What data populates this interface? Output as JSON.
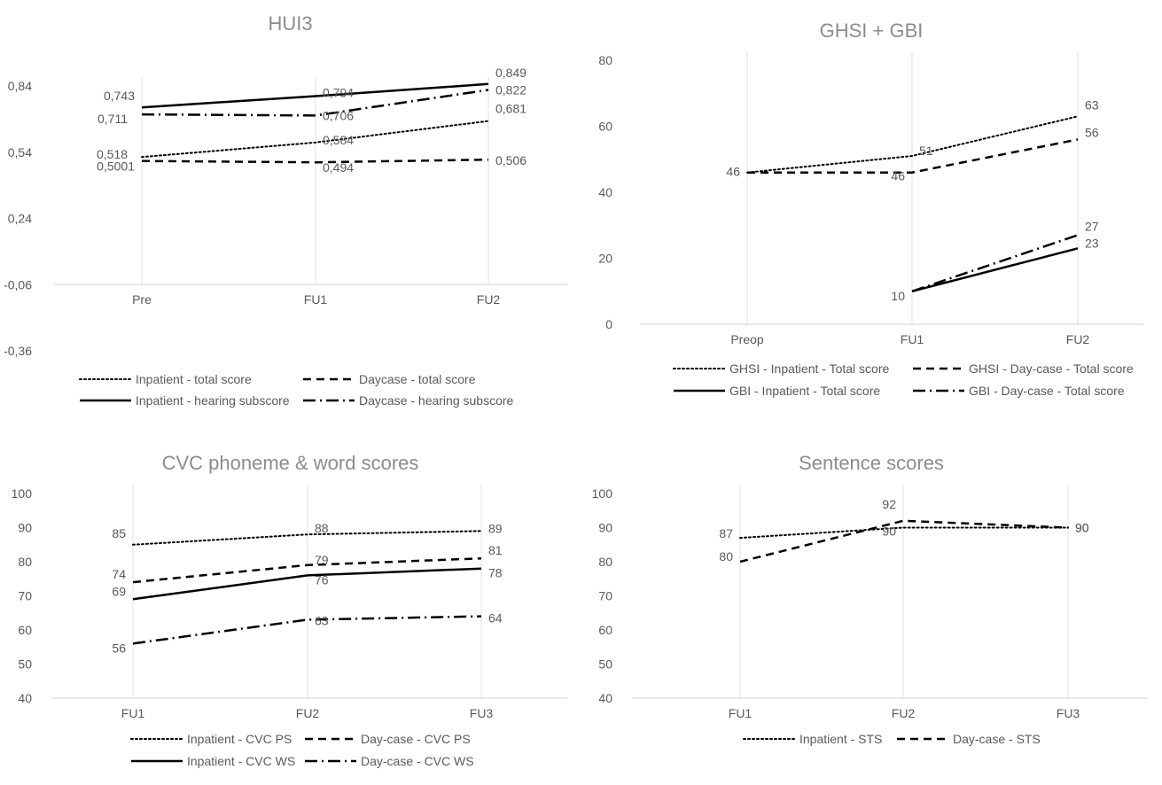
{
  "chart_data": [
    {
      "type": "line",
      "title": "HUI3",
      "categories": [
        "Pre",
        "FU1",
        "FU2"
      ],
      "ylim": [
        -0.36,
        0.84
      ],
      "y_ticks": [
        "0,84",
        "0,54",
        "0,24",
        "-0,06",
        "-0,36"
      ],
      "grid": false,
      "legend_position": "bottom",
      "series": [
        {
          "name": "Inpatient - total score",
          "style": "dotted",
          "values": [
            0.518,
            0.584,
            0.681
          ],
          "labels": [
            "0,518",
            "0,584",
            "0,681"
          ]
        },
        {
          "name": "Daycase - total score",
          "style": "dashed",
          "values": [
            0.5001,
            0.494,
            0.506
          ],
          "labels": [
            "0,5001",
            "0,494",
            "0,506"
          ]
        },
        {
          "name": "Inpatient - hearing subscore",
          "style": "solid",
          "values": [
            0.743,
            0.794,
            0.849
          ],
          "labels": [
            "0,743",
            "0,794",
            "0,849"
          ]
        },
        {
          "name": "Daycase - hearing subscore",
          "style": "dashdot",
          "values": [
            0.711,
            0.706,
            0.822
          ],
          "labels": [
            "0,711",
            "0,706",
            "0,822"
          ]
        }
      ]
    },
    {
      "type": "line",
      "title": "GHSI + GBI",
      "categories": [
        "Preop",
        "FU1",
        "FU2"
      ],
      "ylim": [
        0,
        80
      ],
      "y_ticks": [
        "80",
        "60",
        "40",
        "20",
        "0"
      ],
      "grid": false,
      "legend_position": "bottom",
      "series": [
        {
          "name": "GHSI - Inpatient - Total score",
          "style": "dotted",
          "values": [
            46,
            51,
            63
          ],
          "labels": [
            "",
            "51",
            "63"
          ]
        },
        {
          "name": "GHSI - Day-case - Total score",
          "style": "dashed",
          "values": [
            46,
            46,
            56
          ],
          "labels": [
            "46",
            "46",
            "56"
          ]
        },
        {
          "name": "GBI - Inpatient - Total score",
          "style": "solid",
          "values": [
            null,
            10,
            23
          ],
          "labels": [
            "",
            "10",
            "23"
          ]
        },
        {
          "name": "GBI - Day-case - Total score",
          "style": "dashdot",
          "values": [
            null,
            10,
            27
          ],
          "labels": [
            "",
            "",
            "27"
          ]
        }
      ]
    },
    {
      "type": "line",
      "title": "CVC phoneme & word scores",
      "categories": [
        "FU1",
        "FU2",
        "FU3"
      ],
      "ylim": [
        40,
        100
      ],
      "y_ticks": [
        "100",
        "90",
        "80",
        "70",
        "60",
        "50",
        "40"
      ],
      "grid": false,
      "legend_position": "bottom",
      "series": [
        {
          "name": "Inpatient - CVC PS",
          "style": "dotted",
          "values": [
            85,
            88,
            89
          ],
          "labels": [
            "85",
            "88",
            "89"
          ]
        },
        {
          "name": "Day-case - CVC PS",
          "style": "dashed",
          "values": [
            74,
            79,
            81
          ],
          "labels": [
            "74",
            "79",
            "81"
          ]
        },
        {
          "name": "Inpatient - CVC WS",
          "style": "solid",
          "values": [
            69,
            76,
            78
          ],
          "labels": [
            "69",
            "76",
            "78"
          ]
        },
        {
          "name": "Day-case - CVC WS",
          "style": "dashdot",
          "values": [
            56,
            63,
            64
          ],
          "labels": [
            "56",
            "63",
            "64"
          ]
        }
      ]
    },
    {
      "type": "line",
      "title": "Sentence scores",
      "categories": [
        "FU1",
        "FU2",
        "FU3"
      ],
      "ylim": [
        40,
        100
      ],
      "y_ticks": [
        "100",
        "90",
        "80",
        "70",
        "60",
        "50",
        "40"
      ],
      "grid": false,
      "legend_position": "bottom",
      "series": [
        {
          "name": "Inpatient - STS",
          "style": "dotted",
          "values": [
            87,
            90,
            90
          ],
          "labels": [
            "87",
            "90",
            "90"
          ]
        },
        {
          "name": "Day-case - STS",
          "style": "dashed",
          "values": [
            80,
            92,
            90
          ],
          "labels": [
            "80",
            "92",
            "90"
          ]
        }
      ]
    }
  ]
}
